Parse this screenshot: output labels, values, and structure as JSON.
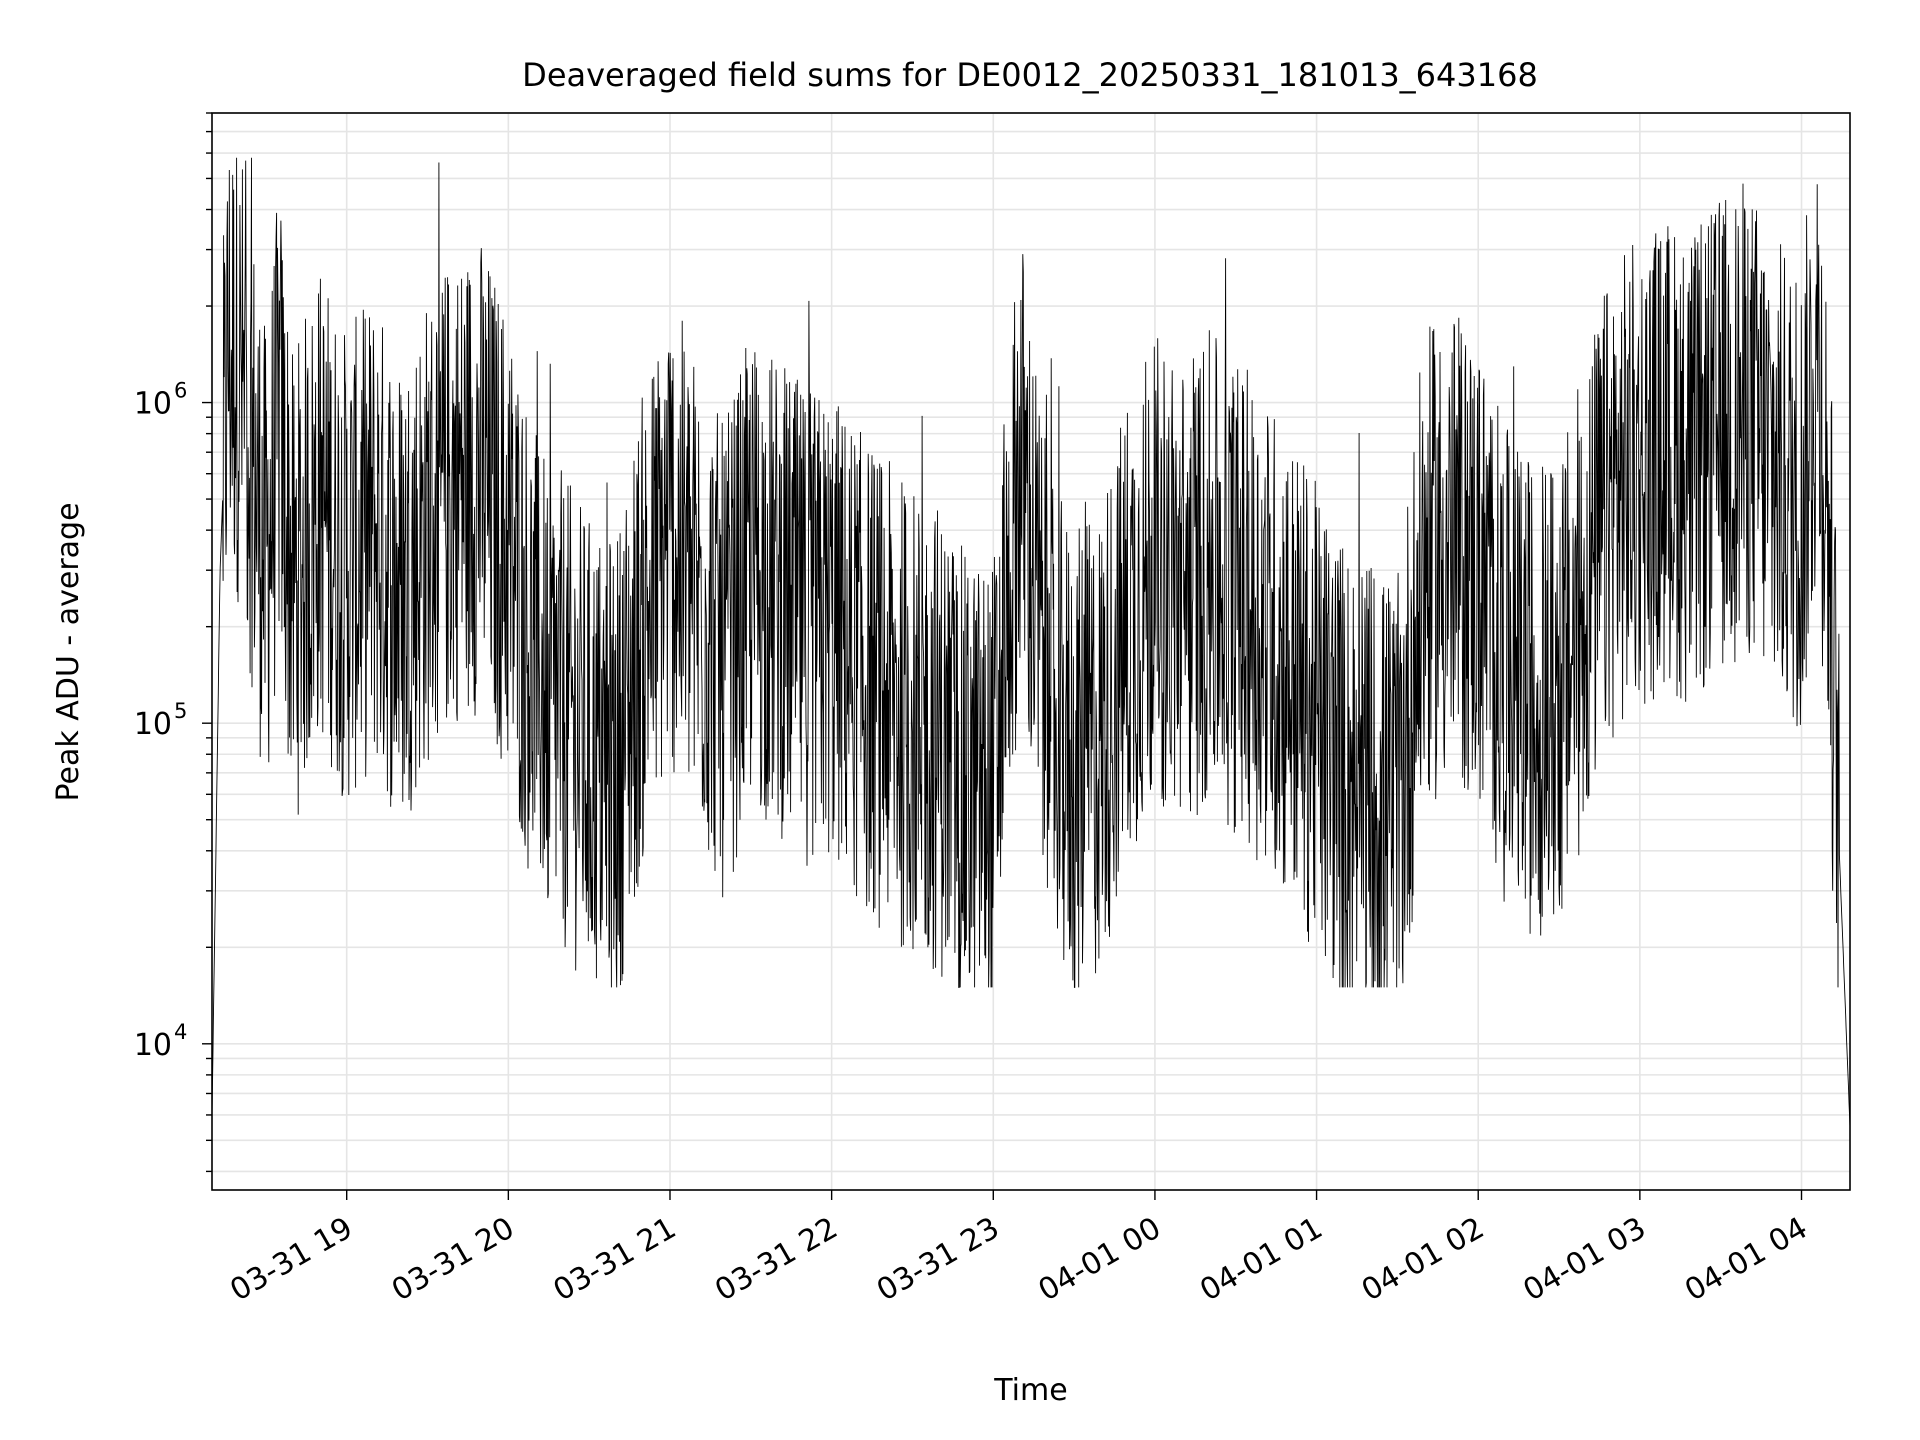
{
  "chart_data": {
    "type": "line",
    "title": "Deaveraged field sums for DE0012_20250331_181013_643168",
    "xlabel": "Time",
    "ylabel": "Peak ADU - average",
    "yscale": "log",
    "ylim": [
      3500,
      8000000
    ],
    "xlim": [
      "2025-03-31 18:10",
      "2025-04-01 04:18"
    ],
    "x_tick_labels": [
      "03-31 19",
      "03-31 20",
      "03-31 21",
      "03-31 22",
      "03-31 23",
      "04-01 00",
      "04-01 01",
      "04-01 02",
      "04-01 03",
      "04-01 04"
    ],
    "y_tick_labels": [
      {
        "base": "10",
        "exp": "4",
        "value": 10000
      },
      {
        "base": "10",
        "exp": "5",
        "value": 100000
      },
      {
        "base": "10",
        "exp": "6",
        "value": 1000000
      }
    ],
    "grid": true,
    "line_color": "#000000",
    "grid_color": "#e5e5e5",
    "series": [
      {
        "points": [
          [
            "2025-03-31 18:10",
            6000
          ],
          [
            "2025-03-31 18:13",
            300000
          ],
          [
            "2025-03-31 18:16",
            1500000
          ],
          [
            "2025-03-31 18:20",
            1300000
          ],
          [
            "2025-03-31 18:25",
            700000
          ],
          [
            "2025-03-31 18:30",
            300000
          ],
          [
            "2025-03-31 18:35",
            900000
          ],
          [
            "2025-03-31 18:40",
            250000
          ],
          [
            "2025-03-31 18:50",
            500000
          ],
          [
            "2025-03-31 19:00",
            300000
          ],
          [
            "2025-03-31 19:10",
            400000
          ],
          [
            "2025-03-31 19:20",
            250000
          ],
          [
            "2025-03-31 19:30",
            400000
          ],
          [
            "2025-03-31 19:40",
            550000
          ],
          [
            "2025-03-31 19:50",
            600000
          ],
          [
            "2025-03-31 20:00",
            350000
          ],
          [
            "2025-03-31 20:10",
            150000
          ],
          [
            "2025-03-31 20:20",
            110000
          ],
          [
            "2025-03-31 20:30",
            80000
          ],
          [
            "2025-03-31 20:40",
            70000
          ],
          [
            "2025-03-31 20:50",
            200000
          ],
          [
            "2025-03-31 21:00",
            400000
          ],
          [
            "2025-03-31 21:10",
            250000
          ],
          [
            "2025-03-31 21:20",
            150000
          ],
          [
            "2025-03-31 21:30",
            300000
          ],
          [
            "2025-03-31 21:40",
            250000
          ],
          [
            "2025-03-31 21:50",
            200000
          ],
          [
            "2025-03-31 22:00",
            200000
          ],
          [
            "2025-03-31 22:10",
            150000
          ],
          [
            "2025-03-31 22:20",
            120000
          ],
          [
            "2025-03-31 22:30",
            100000
          ],
          [
            "2025-03-31 22:40",
            90000
          ],
          [
            "2025-03-31 22:50",
            60000
          ],
          [
            "2025-03-31 23:00",
            60000
          ],
          [
            "2025-03-31 23:10",
            700000
          ],
          [
            "2025-03-31 23:20",
            120000
          ],
          [
            "2025-03-31 23:30",
            70000
          ],
          [
            "2025-03-31 23:40",
            90000
          ],
          [
            "2025-03-31 23:50",
            200000
          ],
          [
            "2025-04-01 00:00",
            300000
          ],
          [
            "2025-04-01 00:10",
            250000
          ],
          [
            "2025-04-01 00:20",
            300000
          ],
          [
            "2025-04-01 00:30",
            250000
          ],
          [
            "2025-04-01 00:40",
            200000
          ],
          [
            "2025-04-01 00:50",
            150000
          ],
          [
            "2025-04-01 01:00",
            100000
          ],
          [
            "2025-04-01 01:10",
            70000
          ],
          [
            "2025-04-01 01:20",
            60000
          ],
          [
            "2025-04-01 01:30",
            50000
          ],
          [
            "2025-04-01 01:40",
            300000
          ],
          [
            "2025-04-01 01:50",
            350000
          ],
          [
            "2025-04-01 02:00",
            300000
          ],
          [
            "2025-04-01 02:10",
            150000
          ],
          [
            "2025-04-01 02:20",
            120000
          ],
          [
            "2025-04-01 02:30",
            120000
          ],
          [
            "2025-04-01 02:40",
            250000
          ],
          [
            "2025-04-01 02:50",
            500000
          ],
          [
            "2025-04-01 03:00",
            600000
          ],
          [
            "2025-04-01 03:10",
            700000
          ],
          [
            "2025-04-01 03:20",
            600000
          ],
          [
            "2025-04-01 03:30",
            800000
          ],
          [
            "2025-04-01 03:40",
            900000
          ],
          [
            "2025-04-01 03:50",
            600000
          ],
          [
            "2025-04-01 04:00",
            500000
          ],
          [
            "2025-04-01 04:06",
            1500000
          ],
          [
            "2025-04-01 04:10",
            400000
          ],
          [
            "2025-04-01 04:14",
            40000
          ],
          [
            "2025-04-01 04:18",
            5500
          ]
        ]
      }
    ]
  }
}
